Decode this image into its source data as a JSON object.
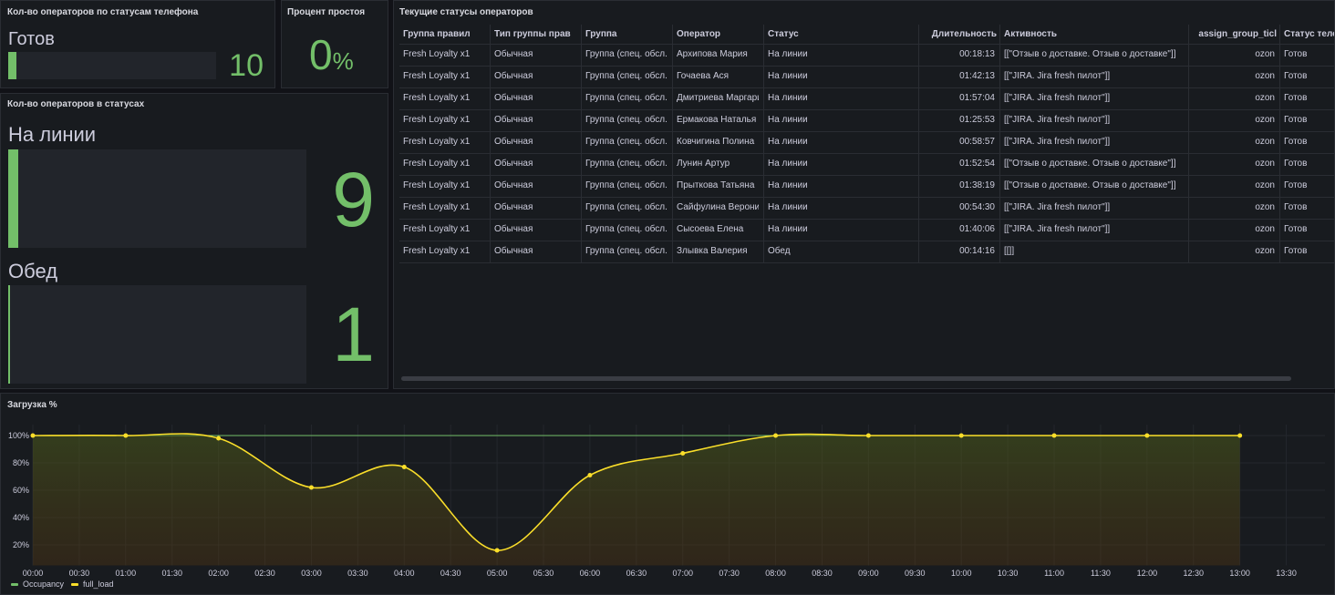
{
  "stat_phone": {
    "title": "Кол-во операторов по статусам телефона",
    "label": "Готов",
    "value": 10
  },
  "idle": {
    "title": "Процент простоя",
    "value": 0,
    "unit": "%"
  },
  "stat_status": {
    "title": "Кол-во операторов в статусах",
    "items": [
      {
        "label": "На линии",
        "value": 9
      },
      {
        "label": "Обед",
        "value": 1
      }
    ]
  },
  "table": {
    "title": "Текущие статусы операторов",
    "columns": [
      "Группа правил",
      "Тип группы прав",
      "Группа",
      "Оператор",
      "Статус",
      "Длительность",
      "Активность",
      "assign_group_ticl",
      "Статус теле"
    ],
    "rows": [
      [
        "Fresh Loyalty x1",
        "Обычная",
        "Группа (спец. обсл.)",
        "Архипова Мария",
        "На линии",
        "00:18:13",
        "[[\"Отзыв о доставке. Отзыв о доставке\"]]",
        "ozon",
        "Готов"
      ],
      [
        "Fresh Loyalty x1",
        "Обычная",
        "Группа (спец. обсл.)",
        "Гочаева Ася",
        "На линии",
        "01:42:13",
        "[[\"JIRA. Jira fresh пилот\"]]",
        "ozon",
        "Готов"
      ],
      [
        "Fresh Loyalty x1",
        "Обычная",
        "Группа (спец. обсл.)",
        "Дмитриева Маргари",
        "На линии",
        "01:57:04",
        "[[\"JIRA. Jira fresh пилот\"]]",
        "ozon",
        "Готов"
      ],
      [
        "Fresh Loyalty x1",
        "Обычная",
        "Группа (спец. обсл.)",
        "Ермакова Наталья",
        "На линии",
        "01:25:53",
        "[[\"JIRA. Jira fresh пилот\"]]",
        "ozon",
        "Готов"
      ],
      [
        "Fresh Loyalty x1",
        "Обычная",
        "Группа (спец. обсл.)",
        "Ковчигина Полина",
        "На линии",
        "00:58:57",
        "[[\"JIRA. Jira fresh пилот\"]]",
        "ozon",
        "Готов"
      ],
      [
        "Fresh Loyalty x1",
        "Обычная",
        "Группа (спец. обсл.)",
        "Лунин Артур",
        "На линии",
        "01:52:54",
        "[[\"Отзыв о доставке. Отзыв о доставке\"]]",
        "ozon",
        "Готов"
      ],
      [
        "Fresh Loyalty x1",
        "Обычная",
        "Группа (спец. обсл.)",
        "Прыткова Татьяна",
        "На линии",
        "01:38:19",
        "[[\"Отзыв о доставке. Отзыв о доставке\"]]",
        "ozon",
        "Готов"
      ],
      [
        "Fresh Loyalty x1",
        "Обычная",
        "Группа (спец. обсл.)",
        "Сайфулина Вероника",
        "На линии",
        "00:54:30",
        "[[\"JIRA. Jira fresh пилот\"]]",
        "ozon",
        "Готов"
      ],
      [
        "Fresh Loyalty x1",
        "Обычная",
        "Группа (спец. обсл.)",
        "Сысоева Елена",
        "На линии",
        "01:40:06",
        "[[\"JIRA. Jira fresh пилот\"]]",
        "ozon",
        "Готов"
      ],
      [
        "Fresh Loyalty x1",
        "Обычная",
        "Группа (спец. обсл.)",
        "Злывка Валерия",
        "Обед",
        "00:14:16",
        "[[]]",
        "ozon",
        "Готов"
      ]
    ]
  },
  "chart_data": {
    "type": "line",
    "title": "Загрузка %",
    "x": [
      "00:00",
      "01:00",
      "02:00",
      "03:00",
      "04:00",
      "05:00",
      "06:00",
      "07:00",
      "08:00",
      "09:00",
      "10:00",
      "11:00",
      "12:00",
      "13:00"
    ],
    "xlim": [
      "00:00",
      "13:55"
    ],
    "xticks": [
      "00:00",
      "00:30",
      "01:00",
      "01:30",
      "02:00",
      "02:30",
      "03:00",
      "03:30",
      "04:00",
      "04:30",
      "05:00",
      "05:30",
      "06:00",
      "06:30",
      "07:00",
      "07:30",
      "08:00",
      "08:30",
      "09:00",
      "09:30",
      "10:00",
      "10:30",
      "11:00",
      "11:30",
      "12:00",
      "12:30",
      "13:00",
      "13:30"
    ],
    "ylim": [
      5,
      108
    ],
    "yticks": [
      {
        "value": 20,
        "label": "20%"
      },
      {
        "value": 40,
        "label": "40%"
      },
      {
        "value": 60,
        "label": "60%"
      },
      {
        "value": 80,
        "label": "80%"
      },
      {
        "value": 100,
        "label": "100%"
      }
    ],
    "grid": true,
    "legend": "bottom-left",
    "series": [
      {
        "name": "Occupancy",
        "color": "#73bf69",
        "values": [
          100,
          100,
          100,
          100,
          100,
          100,
          100,
          100,
          100,
          100,
          100,
          100,
          100,
          100
        ]
      },
      {
        "name": "full_load",
        "color": "#fade2a",
        "values": [
          100,
          100,
          98,
          62,
          77,
          16,
          71,
          87,
          100,
          100,
          100,
          100,
          100,
          100
        ]
      }
    ]
  }
}
